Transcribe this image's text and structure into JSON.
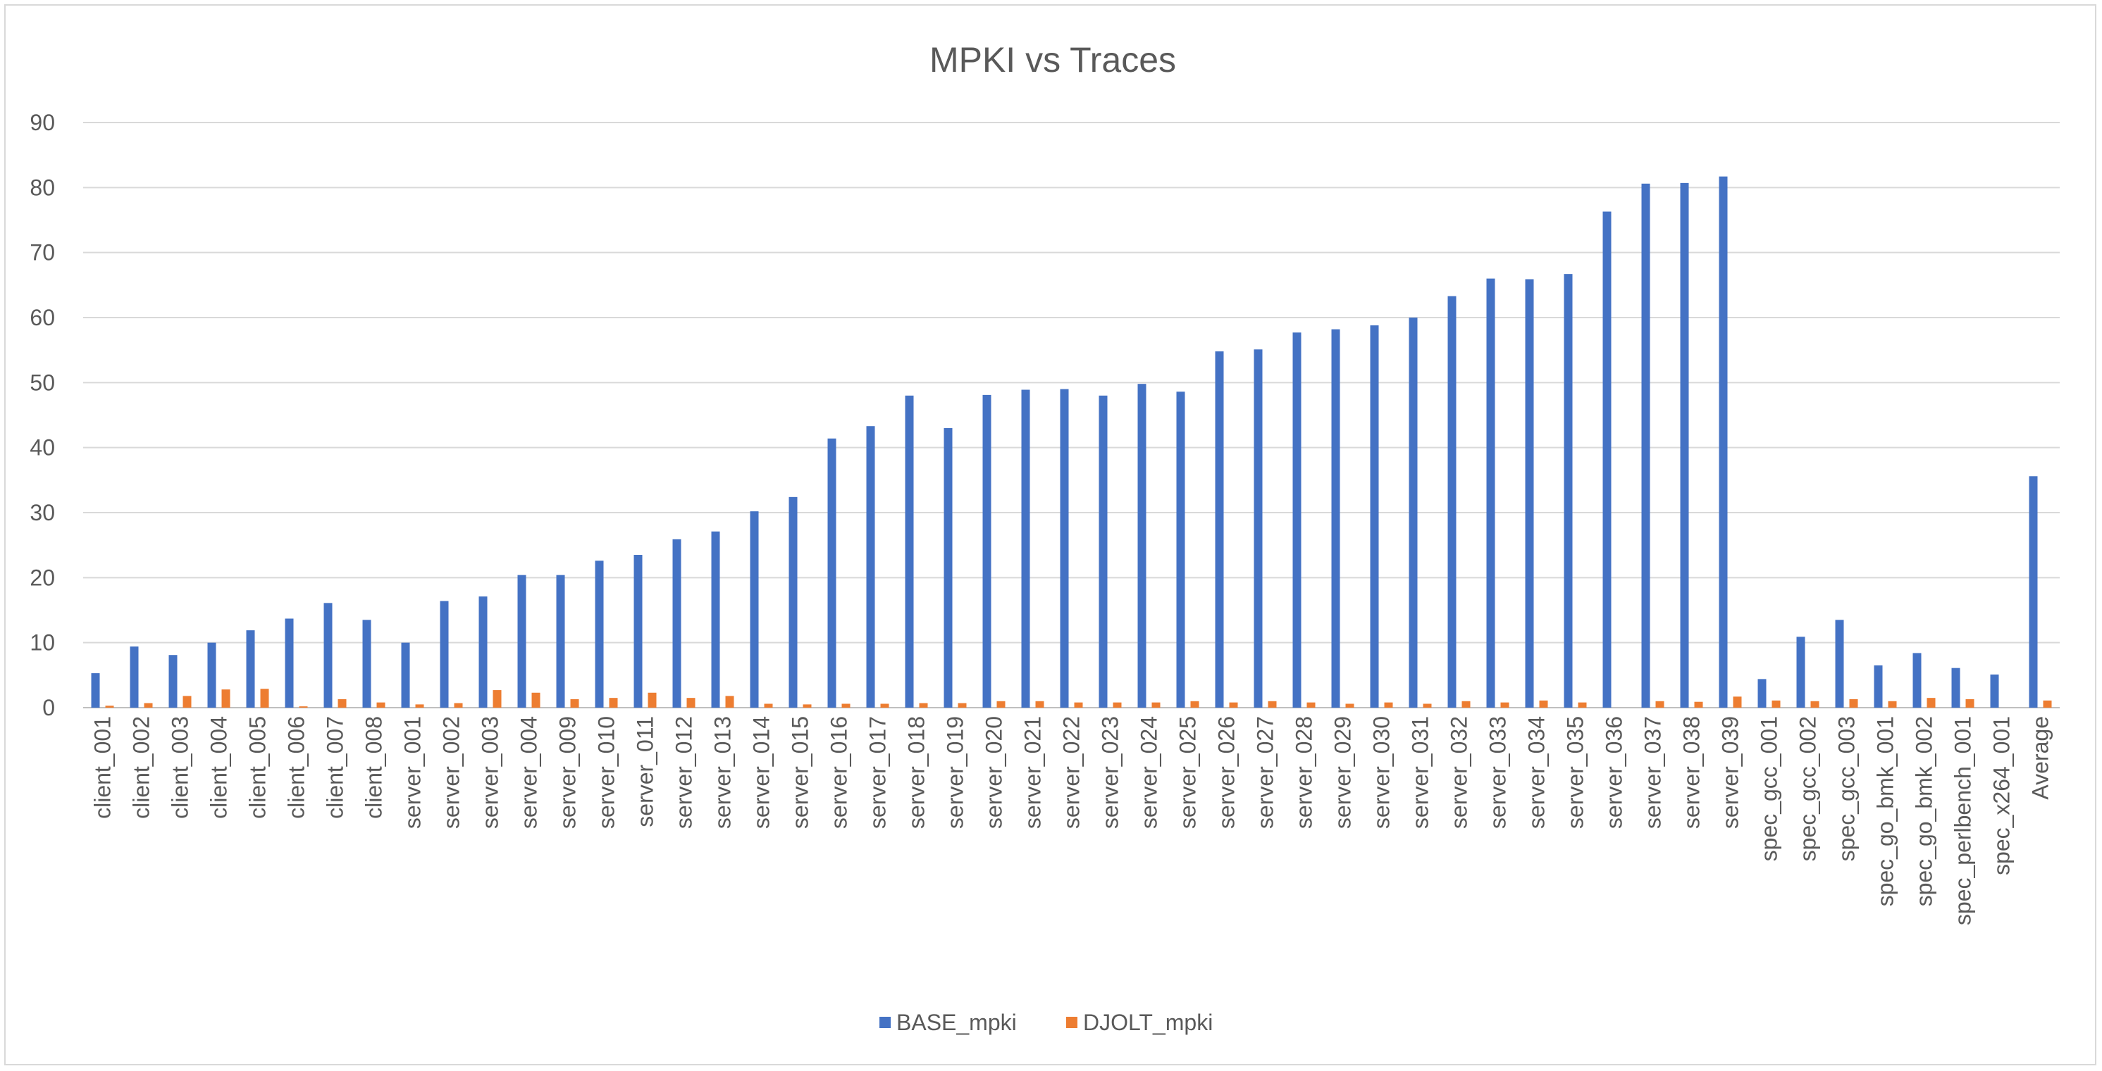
{
  "chart_data": {
    "type": "bar",
    "title": "MPKI vs Traces",
    "xlabel": "",
    "ylabel": "",
    "ylim": [
      0,
      90
    ],
    "yticks": [
      0,
      10,
      20,
      30,
      40,
      50,
      60,
      70,
      80,
      90
    ],
    "grid": true,
    "legend_position": "bottom",
    "categories": [
      "client_001",
      "client_002",
      "client_003",
      "client_004",
      "client_005",
      "client_006",
      "client_007",
      "client_008",
      "server_001",
      "server_002",
      "server_003",
      "server_004",
      "server_009",
      "server_010",
      "server_011",
      "server_012",
      "server_013",
      "server_014",
      "server_015",
      "server_016",
      "server_017",
      "server_018",
      "server_019",
      "server_020",
      "server_021",
      "server_022",
      "server_023",
      "server_024",
      "server_025",
      "server_026",
      "server_027",
      "server_028",
      "server_029",
      "server_030",
      "server_031",
      "server_032",
      "server_033",
      "server_034",
      "server_035",
      "server_036",
      "server_037",
      "server_038",
      "server_039",
      "spec_gcc_001",
      "spec_gcc_002",
      "spec_gcc_003",
      "spec_go_bmk_001",
      "spec_go_bmk_002",
      "spec_perlbench_001",
      "spec_x264_001",
      "Average"
    ],
    "series": [
      {
        "name": "BASE_mpki",
        "color": "#4472c4",
        "values": [
          5.3,
          9.4,
          8.1,
          10.0,
          11.9,
          13.7,
          16.1,
          13.5,
          10.0,
          16.4,
          17.1,
          20.4,
          20.4,
          22.6,
          23.5,
          25.9,
          27.1,
          30.2,
          32.4,
          41.4,
          43.3,
          48.0,
          43.0,
          48.1,
          48.9,
          49.0,
          48.0,
          49.8,
          48.6,
          54.8,
          55.1,
          57.7,
          58.2,
          58.8,
          60.0,
          63.3,
          66.0,
          65.9,
          66.7,
          76.3,
          80.6,
          80.7,
          81.7,
          4.4,
          10.9,
          13.5,
          6.5,
          8.4,
          6.1,
          5.1,
          35.6
        ]
      },
      {
        "name": "DJOLT_mpki",
        "color": "#ed7d31",
        "values": [
          0.3,
          0.7,
          1.8,
          2.8,
          2.9,
          0.2,
          1.3,
          0.8,
          0.5,
          0.7,
          2.7,
          2.3,
          1.3,
          1.5,
          2.3,
          1.5,
          1.8,
          0.6,
          0.5,
          0.6,
          0.6,
          0.7,
          0.7,
          1.0,
          1.0,
          0.8,
          0.8,
          0.8,
          1.0,
          0.8,
          1.0,
          0.8,
          0.6,
          0.8,
          0.6,
          1.0,
          0.8,
          1.1,
          0.8,
          0.0,
          1.0,
          0.9,
          1.7,
          1.1,
          1.0,
          1.3,
          1.0,
          1.5,
          1.3,
          0.0,
          1.1
        ]
      }
    ]
  }
}
